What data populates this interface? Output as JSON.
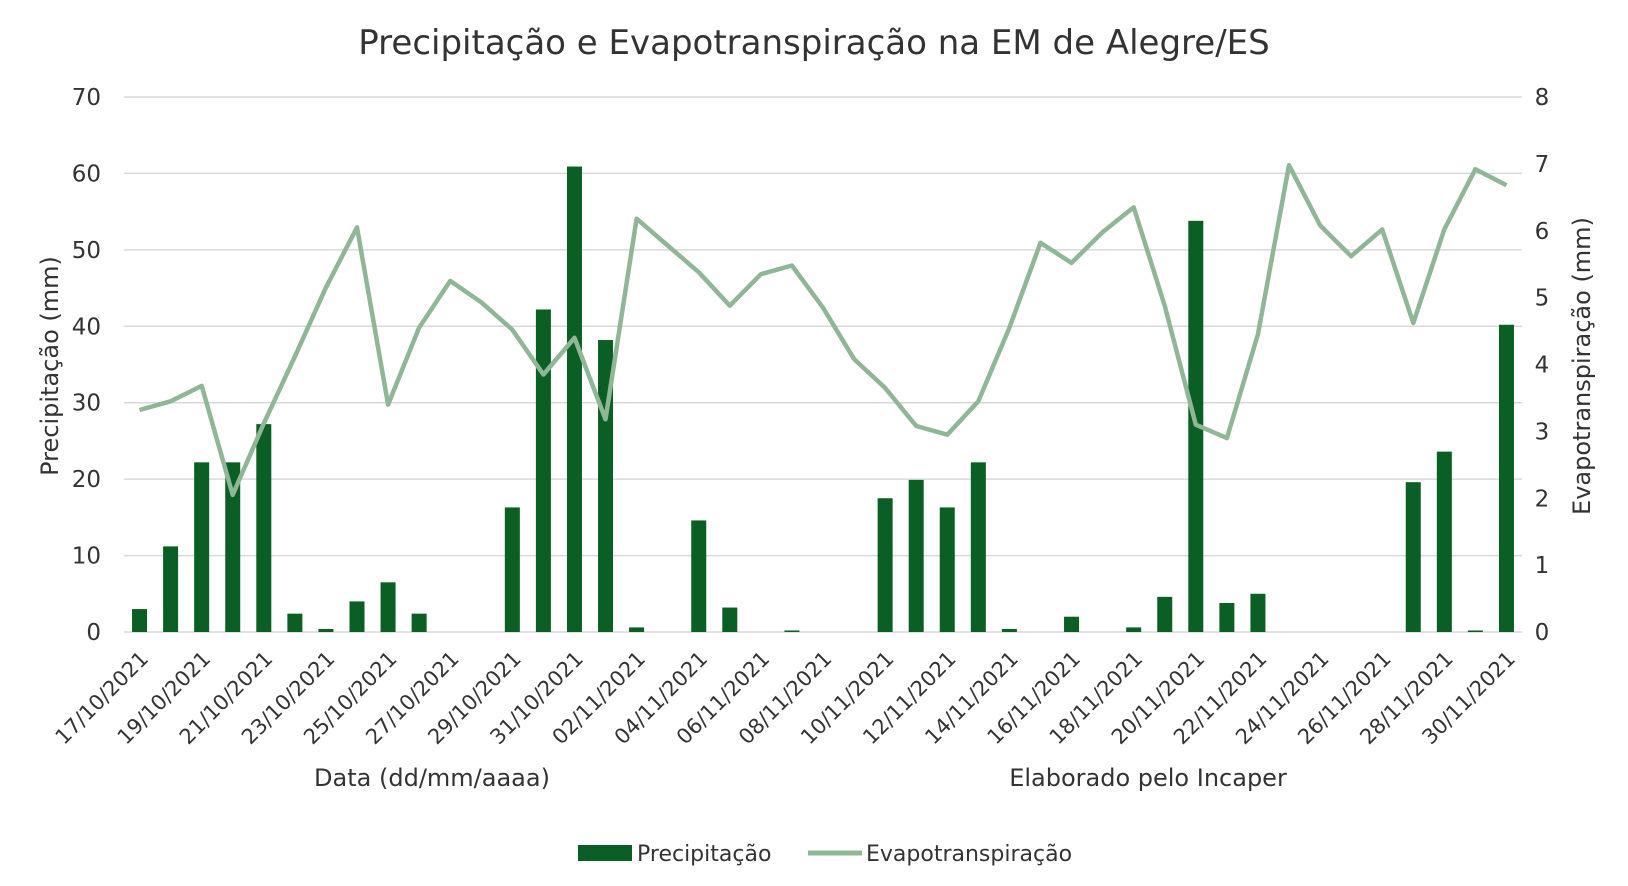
{
  "chart_data": {
    "type": "bar",
    "title": "Precipitação e Evapotranspiração na EM de Alegre/ES",
    "xlabel": "Data (dd/mm/aaaa)",
    "credit": "Elaborado pelo Incaper",
    "ylabel": "Precipitação (mm)",
    "y2label": "Evapotranspiração (mm)",
    "ylim": [
      0,
      70
    ],
    "y2lim": [
      0,
      8
    ],
    "y_ticks": [
      "0",
      "10",
      "20",
      "30",
      "40",
      "50",
      "60",
      "70"
    ],
    "y2_ticks": [
      "0",
      "1",
      "2",
      "3",
      "4",
      "5",
      "6",
      "7",
      "8"
    ],
    "grid": true,
    "legend_position": "bottom",
    "categories": [
      "17/10/2021",
      "18/10/2021",
      "19/10/2021",
      "20/10/2021",
      "21/10/2021",
      "22/10/2021",
      "23/10/2021",
      "24/10/2021",
      "25/10/2021",
      "26/10/2021",
      "27/10/2021",
      "28/10/2021",
      "29/10/2021",
      "30/10/2021",
      "31/10/2021",
      "01/11/2021",
      "02/11/2021",
      "03/11/2021",
      "04/11/2021",
      "05/11/2021",
      "06/11/2021",
      "07/11/2021",
      "08/11/2021",
      "09/11/2021",
      "10/11/2021",
      "11/11/2021",
      "12/11/2021",
      "13/11/2021",
      "14/11/2021",
      "15/11/2021",
      "16/11/2021",
      "17/11/2021",
      "18/11/2021",
      "19/11/2021",
      "20/11/2021",
      "21/11/2021",
      "22/11/2021",
      "23/11/2021",
      "24/11/2021",
      "25/11/2021",
      "26/11/2021",
      "27/11/2021",
      "28/11/2021",
      "29/11/2021",
      "30/11/2021"
    ],
    "x_tick_labels": [
      "17/10/2021",
      "19/10/2021",
      "21/10/2021",
      "23/10/2021",
      "25/10/2021",
      "27/10/2021",
      "29/10/2021",
      "31/10/2021",
      "02/11/2021",
      "04/11/2021",
      "06/11/2021",
      "08/11/2021",
      "10/11/2021",
      "12/11/2021",
      "14/11/2021",
      "16/11/2021",
      "18/11/2021",
      "20/11/2021",
      "22/11/2021",
      "24/11/2021",
      "26/11/2021",
      "28/11/2021",
      "30/11/2021"
    ],
    "series": [
      {
        "name": "Precipitação",
        "type": "bar",
        "axis": "left",
        "color": "#0b5e24",
        "values": [
          3.0,
          11.2,
          22.2,
          22.2,
          27.2,
          2.4,
          0.4,
          4.0,
          6.5,
          2.4,
          0.0,
          0.0,
          16.3,
          42.2,
          60.9,
          38.2,
          0.6,
          0.0,
          14.6,
          3.2,
          0.0,
          0.2,
          0.0,
          0.0,
          17.5,
          19.9,
          16.3,
          22.2,
          0.4,
          0.0,
          2.0,
          0.0,
          0.6,
          4.6,
          53.8,
          3.8,
          5.0,
          0.0,
          0.0,
          0.0,
          0.0,
          19.6,
          23.6,
          0.2,
          40.2
        ]
      },
      {
        "name": "Evapotranspiração",
        "type": "line",
        "axis": "right",
        "color": "#8fb796",
        "values": [
          3.32,
          3.45,
          3.68,
          2.05,
          3.12,
          4.12,
          5.15,
          6.05,
          3.4,
          4.55,
          5.25,
          4.93,
          4.52,
          3.85,
          4.4,
          3.18,
          6.18,
          5.78,
          5.38,
          4.88,
          5.35,
          5.48,
          4.85,
          4.08,
          3.65,
          3.08,
          2.95,
          3.45,
          4.55,
          5.82,
          5.52,
          5.98,
          6.35,
          4.88,
          3.1,
          2.9,
          4.45,
          6.98,
          6.08,
          5.62,
          6.02,
          4.62,
          6.02,
          6.92,
          6.68
        ]
      }
    ]
  }
}
